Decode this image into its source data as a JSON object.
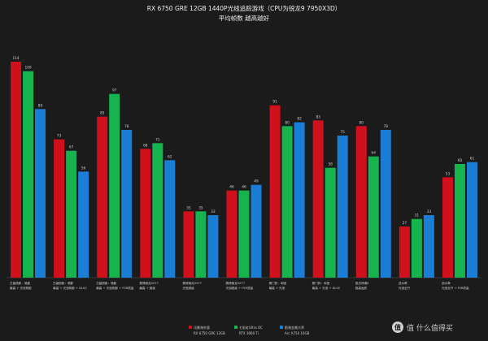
{
  "chart_data": {
    "type": "bar",
    "title": "RX 6750 GRE 12GB 1440P光线追踪游戏（CPU为锐龙9 7950X3D）",
    "subtitle": "平均帧数 越高越好",
    "categories": [
      [
        "古墓丽影：暗影",
        "最高 + 光追阴影"
      ],
      [
        "古墓丽影：暗影",
        "最高 + 光追阴影 + DLSS"
      ],
      [
        "古墓丽影：暗影",
        "最高 + 光追阴影 + FSR质量"
      ],
      [
        "赛博朋克2077",
        "最高 + 超级"
      ],
      [
        "赛博朋克2077",
        "光追超级"
      ],
      [
        "赛博朋克2077",
        "光追超级 + FSR质量"
      ],
      [
        "看门狗：军团",
        "最高 + 光追"
      ],
      [
        "看门狗：军团",
        "最高 + 光追 + DLSS"
      ],
      [
        "孤岛惊魂6",
        "极高画质"
      ],
      [
        "逆水寒",
        "光追全开"
      ],
      [
        "逆水寒",
        "光追全开 + FSR质量"
      ]
    ],
    "series": [
      {
        "name": "讯景海外版",
        "sub": "RX 6750 GRE 12GB",
        "color": "#d0101c",
        "values": [
          114,
          73,
          85,
          68,
          35,
          46,
          91,
          83,
          80,
          27,
          53
        ]
      },
      {
        "name": "七彩虹Ultra OC",
        "sub": "RTX 3060 Ti",
        "color": "#16b34f",
        "values": [
          109,
          67,
          97,
          71,
          35,
          46,
          80,
          58,
          64,
          31,
          60
        ]
      },
      {
        "name": "影驰金属大师",
        "sub": "Arc A750 16GB",
        "color": "#1a7ed6",
        "values": [
          89,
          56,
          78,
          62,
          33,
          49,
          82,
          75,
          78,
          33,
          61
        ]
      }
    ],
    "ylim": [
      0,
      120
    ],
    "grid": false,
    "legend": "bottom-center"
  },
  "watermark": "值 什么值得买"
}
